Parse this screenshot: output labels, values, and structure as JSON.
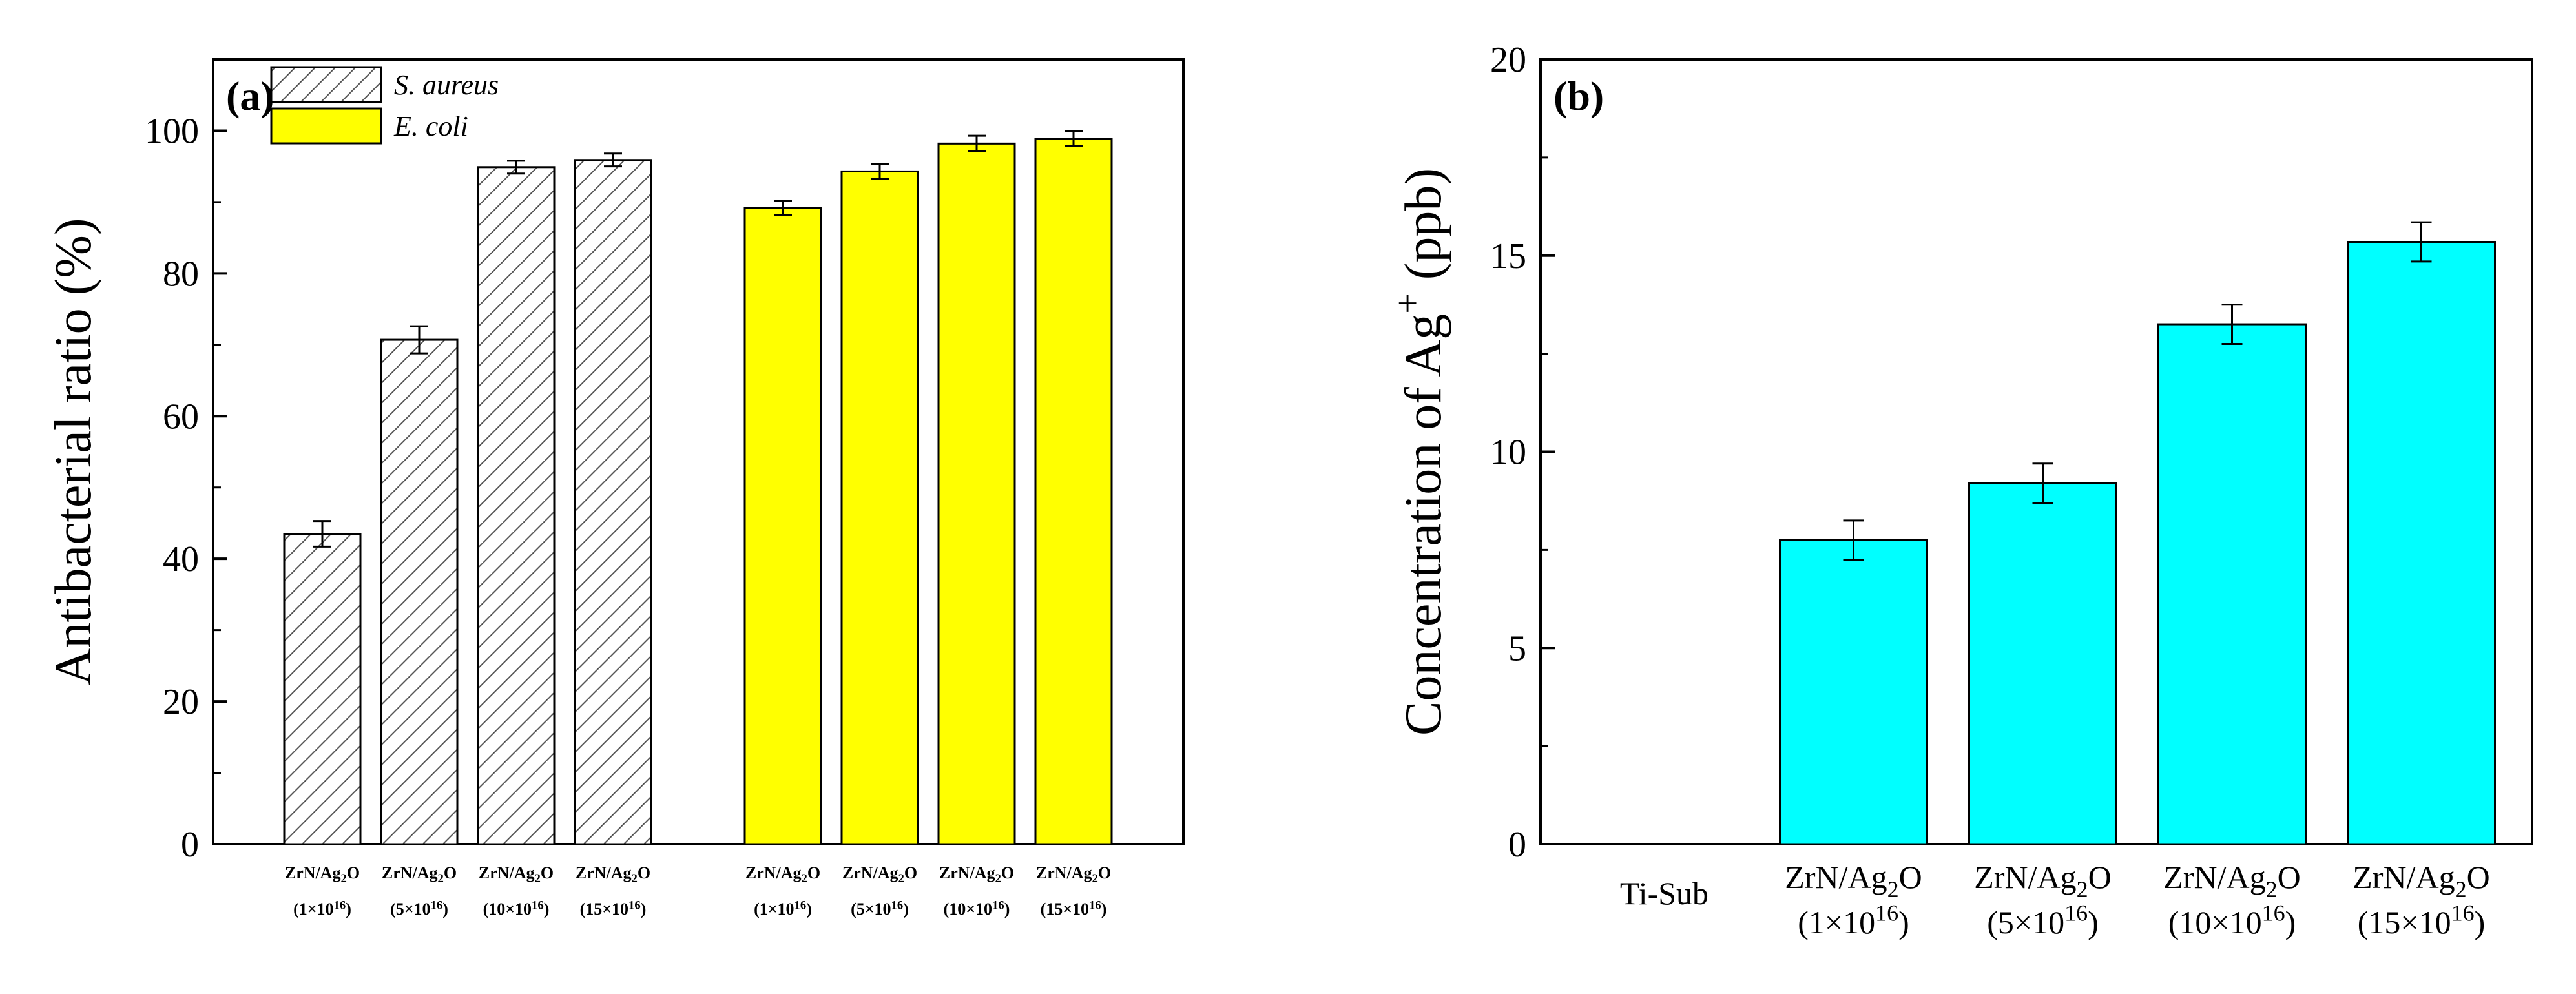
{
  "chart_data": [
    {
      "type": "bar",
      "panel_label": "(a)",
      "ylabel": "Antibacterial ratio (%)",
      "ylim": [
        0,
        110
      ],
      "yticks": [
        0,
        20,
        40,
        60,
        80,
        100
      ],
      "legend": [
        {
          "name": "S. aureus",
          "style": "hatched",
          "color": "#ffffff"
        },
        {
          "name": "E. coli",
          "style": "solid",
          "color": "#ffff00"
        }
      ],
      "series": [
        {
          "name": "S. aureus",
          "color": "#ffffff",
          "hatched": true,
          "categories": [
            {
              "main": "ZrN/Ag",
              "sub": "2",
              "tail": "O",
              "dose": "(1×10",
              "exp": "16",
              "close": ")"
            },
            {
              "main": "ZrN/Ag",
              "sub": "2",
              "tail": "O",
              "dose": "(5×10",
              "exp": "16",
              "close": ")"
            },
            {
              "main": "ZrN/Ag",
              "sub": "2",
              "tail": "O",
              "dose": "(10×10",
              "exp": "16",
              "close": ")"
            },
            {
              "main": "ZrN/Ag",
              "sub": "2",
              "tail": "O",
              "dose": "(15×10",
              "exp": "16",
              "close": ")"
            }
          ],
          "values": [
            43.5,
            70.7,
            94.9,
            95.9
          ],
          "errors": [
            1.8,
            1.9,
            0.9,
            0.9
          ]
        },
        {
          "name": "E. coli",
          "color": "#ffff00",
          "hatched": false,
          "categories": [
            {
              "main": "ZrN/Ag",
              "sub": "2",
              "tail": "O",
              "dose": "(1×10",
              "exp": "16",
              "close": ")"
            },
            {
              "main": "ZrN/Ag",
              "sub": "2",
              "tail": "O",
              "dose": "(5×10",
              "exp": "16",
              "close": ")"
            },
            {
              "main": "ZrN/Ag",
              "sub": "2",
              "tail": "O",
              "dose": "(10×10",
              "exp": "16",
              "close": ")"
            },
            {
              "main": "ZrN/Ag",
              "sub": "2",
              "tail": "O",
              "dose": "(15×10",
              "exp": "16",
              "close": ")"
            }
          ],
          "values": [
            89.2,
            94.3,
            98.2,
            98.9
          ],
          "errors": [
            1.0,
            1.0,
            1.1,
            1.0
          ]
        }
      ]
    },
    {
      "type": "bar",
      "panel_label": "(b)",
      "ylabel_main": "Concentration of Ag",
      "ylabel_sup": "+",
      "ylabel_unit": "(ppb)",
      "ylim": [
        0,
        20
      ],
      "yticks": [
        0,
        5,
        10,
        15,
        20
      ],
      "color": "#00ffff",
      "categories": [
        {
          "main": "Ti-Sub",
          "plain": true
        },
        {
          "main": "ZrN/Ag",
          "sub": "2",
          "tail": "O",
          "dose": "(1×10",
          "exp": "16",
          "close": ")"
        },
        {
          "main": "ZrN/Ag",
          "sub": "2",
          "tail": "O",
          "dose": "(5×10",
          "exp": "16",
          "close": ")"
        },
        {
          "main": "ZrN/Ag",
          "sub": "2",
          "tail": "O",
          "dose": "(10×10",
          "exp": "16",
          "close": ")"
        },
        {
          "main": "ZrN/Ag",
          "sub": "2",
          "tail": "O",
          "dose": "(15×10",
          "exp": "16",
          "close": ")"
        }
      ],
      "values": [
        0,
        7.75,
        9.2,
        13.25,
        15.35
      ],
      "errors": [
        0,
        0.5,
        0.5,
        0.5,
        0.5
      ]
    }
  ]
}
